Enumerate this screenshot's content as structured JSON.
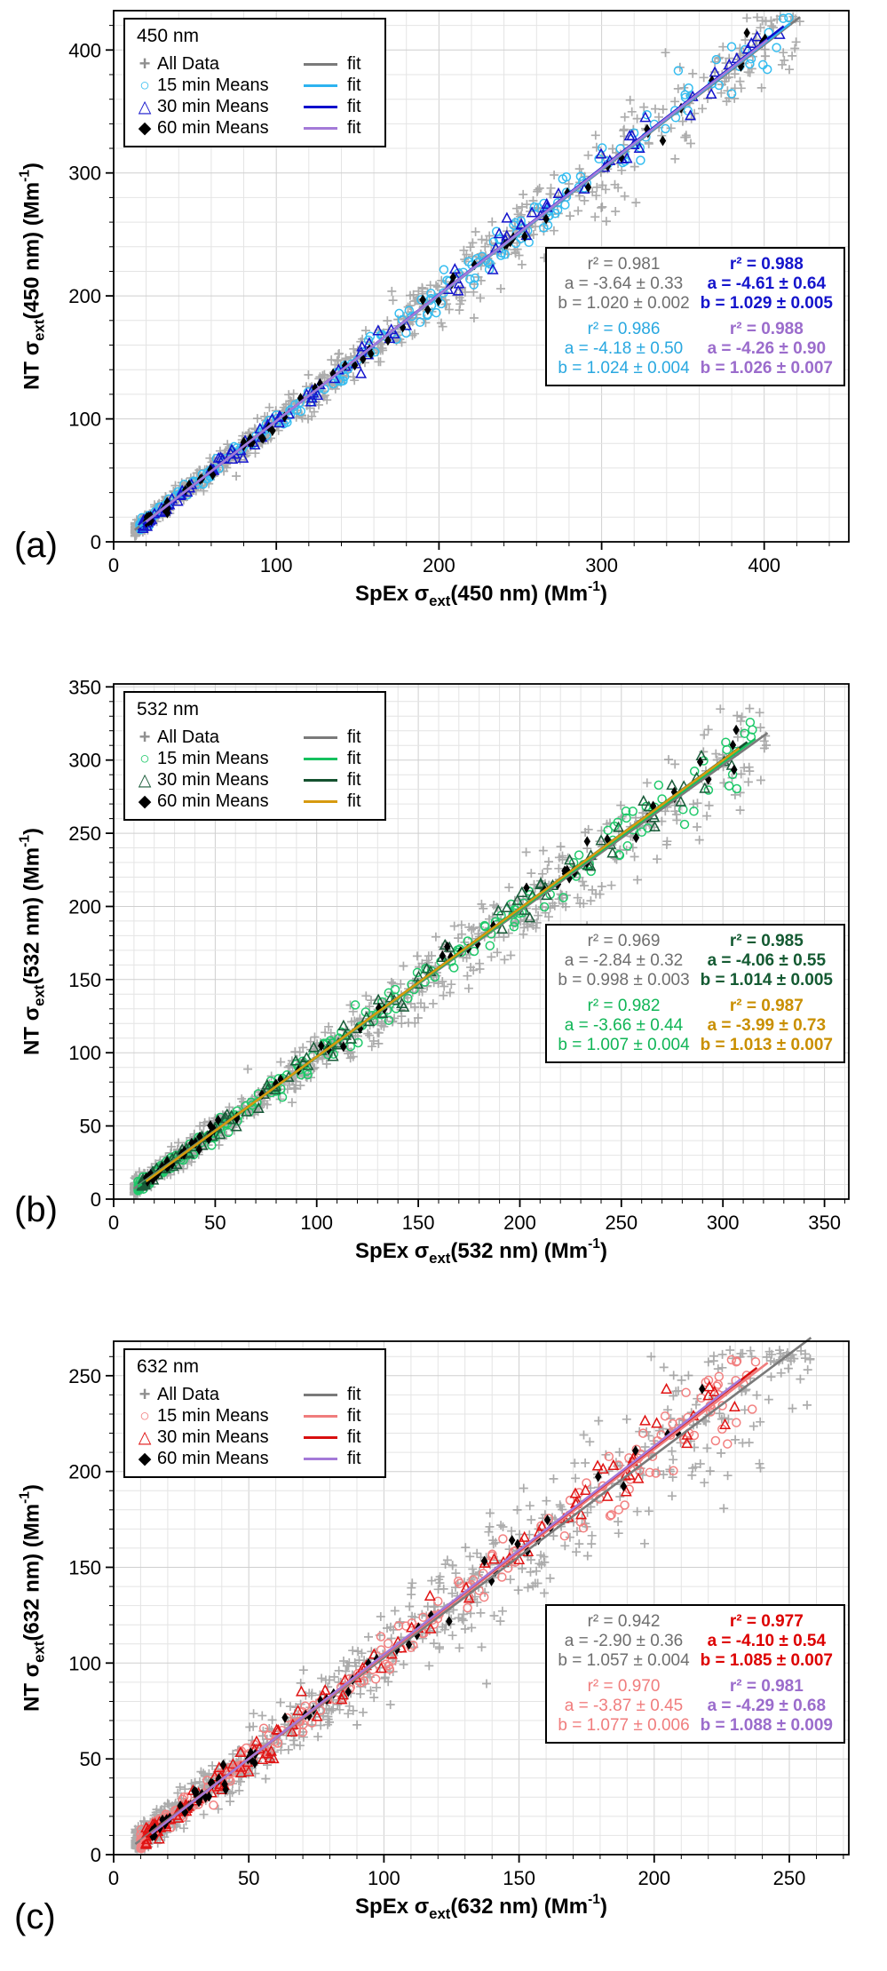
{
  "chart_data": [
    {
      "type": "scatter",
      "panel_label": "(a)",
      "seed": 101,
      "legend": {
        "title": "450 nm",
        "fit_label": "fit",
        "entries": [
          {
            "label": "All Data",
            "marker": "plus",
            "glyph": "+",
            "marker_color": "#8f8f8f",
            "line_color": "#7a7a7a"
          },
          {
            "label": "15 min Means",
            "marker": "circle",
            "glyph": "○",
            "marker_color": "#35bdf0",
            "line_color": "#2db3f0"
          },
          {
            "label": "30 min Means",
            "marker": "triangle",
            "glyph": "△",
            "marker_color": "#1414cc",
            "line_color": "#0e0ecc"
          },
          {
            "label": "60 min Means",
            "marker": "diamond",
            "glyph": "◆",
            "marker_color": "#000000",
            "line_color": "#a47ad8"
          }
        ]
      },
      "xlabel_parts": {
        "pre": "SpEx σ",
        "sub": "ext",
        "mid": "(450 nm) (Mm",
        "sup": "-1",
        "post": ")"
      },
      "ylabel_parts": {
        "pre": "NT σ",
        "sub": "ext",
        "mid": "(450 nm) (Mm",
        "sup": "-1",
        "post": ")"
      },
      "axes": {
        "xlim": [
          0,
          452
        ],
        "ylim": [
          0,
          432
        ],
        "xticks": [
          0,
          100,
          200,
          300,
          400
        ],
        "yticks": [
          0,
          100,
          200,
          300,
          400
        ],
        "minor_step": 20,
        "grid": true
      },
      "series": [
        {
          "name": "All Data",
          "marker": "plus",
          "color": "#909090",
          "n": 850,
          "x_min": 13,
          "x_max": 422,
          "noise_base": 2.5,
          "noise_slope": 0.045,
          "fit": {
            "r2": 0.981,
            "a": -3.64,
            "b": 1.02
          },
          "fit_color": "#7a7a7a"
        },
        {
          "name": "15 min Means",
          "marker": "circle",
          "color": "#35bdf0",
          "n": 250,
          "x_min": 16,
          "x_max": 416,
          "noise_base": 1.6,
          "noise_slope": 0.024,
          "fit": {
            "r2": 0.986,
            "a": -4.18,
            "b": 1.024
          },
          "fit_color": "#2db3f0"
        },
        {
          "name": "30 min Means",
          "marker": "triangle",
          "color": "#1414cc",
          "n": 125,
          "x_min": 18,
          "x_max": 412,
          "noise_base": 1.6,
          "noise_slope": 0.021,
          "fit": {
            "r2": 0.988,
            "a": -4.61,
            "b": 1.029
          },
          "fit_color": "#0e0ecc"
        },
        {
          "name": "60 min Means",
          "marker": "diamond",
          "color": "#000000",
          "n": 68,
          "x_min": 20,
          "x_max": 402,
          "noise_base": 1.3,
          "noise_slope": 0.018,
          "fit": {
            "r2": 0.988,
            "a": -4.26,
            "b": 1.026
          },
          "fit_color": "#a47ad8"
        }
      ],
      "stats": {
        "left": [
          {
            "series": "All Data",
            "color": "#6e6e6e",
            "bold": false,
            "lines": [
              "r² = 0.981",
              "a = -3.64 ± 0.33",
              "b = 1.020 ± 0.002"
            ]
          },
          {
            "series": "15 min Means",
            "color": "#29a8e0",
            "bold": false,
            "lines": [
              "r² = 0.986",
              "a = -4.18 ± 0.50",
              "b = 1.024 ± 0.004"
            ]
          }
        ],
        "right": [
          {
            "series": "30 min Means",
            "color": "#1414cc",
            "bold": true,
            "lines": [
              "r² = 0.988",
              "a = -4.61 ± 0.64",
              "b = 1.029 ± 0.005"
            ]
          },
          {
            "series": "60 min Means",
            "color": "#9b6ccc",
            "bold": true,
            "lines": [
              "r² = 0.988",
              "a = -4.26 ± 0.90",
              "b = 1.026 ± 0.007"
            ]
          }
        ]
      }
    },
    {
      "type": "scatter",
      "panel_label": "(b)",
      "seed": 202,
      "legend": {
        "title": "532 nm",
        "fit_label": "fit",
        "entries": [
          {
            "label": "All Data",
            "marker": "plus",
            "glyph": "+",
            "marker_color": "#8f8f8f",
            "line_color": "#7a7a7a"
          },
          {
            "label": "15 min Means",
            "marker": "circle",
            "glyph": "○",
            "marker_color": "#1fc96a",
            "line_color": "#15c15e"
          },
          {
            "label": "30 min Means",
            "marker": "triangle",
            "glyph": "△",
            "marker_color": "#1a5c3a",
            "line_color": "#14522f"
          },
          {
            "label": "60 min Means",
            "marker": "diamond",
            "glyph": "◆",
            "marker_color": "#000000",
            "line_color": "#d79a10"
          }
        ]
      },
      "xlabel_parts": {
        "pre": "SpEx σ",
        "sub": "ext",
        "mid": "(532 nm) (Mm",
        "sup": "-1",
        "post": ")"
      },
      "ylabel_parts": {
        "pre": "NT σ",
        "sub": "ext",
        "mid": "(532 nm) (Mm",
        "sup": "-1",
        "post": ")"
      },
      "axes": {
        "xlim": [
          0,
          362
        ],
        "ylim": [
          0,
          352
        ],
        "xticks": [
          0,
          50,
          100,
          150,
          200,
          250,
          300,
          350
        ],
        "yticks": [
          0,
          50,
          100,
          150,
          200,
          250,
          300,
          350
        ],
        "minor_step": 10,
        "grid": true
      },
      "series": [
        {
          "name": "All Data",
          "marker": "plus",
          "color": "#909090",
          "n": 850,
          "x_min": 10,
          "x_max": 322,
          "noise_base": 2.5,
          "noise_slope": 0.055,
          "fit": {
            "r2": 0.969,
            "a": -2.84,
            "b": 0.998
          },
          "fit_color": "#7a7a7a"
        },
        {
          "name": "15 min Means",
          "marker": "circle",
          "color": "#1fc96a",
          "n": 250,
          "x_min": 12,
          "x_max": 316,
          "noise_base": 1.6,
          "noise_slope": 0.028,
          "fit": {
            "r2": 0.982,
            "a": -3.66,
            "b": 1.007
          },
          "fit_color": "#15c15e"
        },
        {
          "name": "30 min Means",
          "marker": "triangle",
          "color": "#1a5c3a",
          "n": 125,
          "x_min": 14,
          "x_max": 312,
          "noise_base": 1.6,
          "noise_slope": 0.025,
          "fit": {
            "r2": 0.985,
            "a": -4.06,
            "b": 1.014
          },
          "fit_color": "#14522f"
        },
        {
          "name": "60 min Means",
          "marker": "diamond",
          "color": "#000000",
          "n": 68,
          "x_min": 16,
          "x_max": 308,
          "noise_base": 1.3,
          "noise_slope": 0.02,
          "fit": {
            "r2": 0.987,
            "a": -3.99,
            "b": 1.013
          },
          "fit_color": "#d79a10"
        }
      ],
      "stats": {
        "left": [
          {
            "series": "All Data",
            "color": "#6e6e6e",
            "bold": false,
            "lines": [
              "r² = 0.969",
              "a = -2.84 ± 0.32",
              "b = 0.998 ± 0.003"
            ]
          },
          {
            "series": "15 min Means",
            "color": "#10b556",
            "bold": false,
            "lines": [
              "r² = 0.982",
              "a = -3.66 ± 0.44",
              "b = 1.007 ± 0.004"
            ]
          }
        ],
        "right": [
          {
            "series": "30 min Means",
            "color": "#145a32",
            "bold": true,
            "lines": [
              "r² = 0.985",
              "a = -4.06 ± 0.55",
              "b = 1.014 ± 0.005"
            ]
          },
          {
            "series": "60 min Means",
            "color": "#c98f00",
            "bold": true,
            "lines": [
              "r² = 0.987",
              "a = -3.99 ± 0.73",
              "b = 1.013 ± 0.007"
            ]
          }
        ]
      }
    },
    {
      "type": "scatter",
      "panel_label": "(c)",
      "seed": 303,
      "legend": {
        "title": "632 nm",
        "fit_label": "fit",
        "entries": [
          {
            "label": "All Data",
            "marker": "plus",
            "glyph": "+",
            "marker_color": "#8f8f8f",
            "line_color": "#7a7a7a"
          },
          {
            "label": "15 min Means",
            "marker": "circle",
            "glyph": "○",
            "marker_color": "#f28080",
            "line_color": "#f07d7d"
          },
          {
            "label": "30 min Means",
            "marker": "triangle",
            "glyph": "△",
            "marker_color": "#e01414",
            "line_color": "#d80e0e"
          },
          {
            "label": "60 min Means",
            "marker": "diamond",
            "glyph": "◆",
            "marker_color": "#000000",
            "line_color": "#a47ad8"
          }
        ]
      },
      "xlabel_parts": {
        "pre": "SpEx σ",
        "sub": "ext",
        "mid": "(632 nm) (Mm",
        "sup": "-1",
        "post": ")"
      },
      "ylabel_parts": {
        "pre": "NT σ",
        "sub": "ext",
        "mid": "(632 nm) (Mm",
        "sup": "-1",
        "post": ")"
      },
      "axes": {
        "xlim": [
          0,
          272
        ],
        "ylim": [
          0,
          268
        ],
        "xticks": [
          0,
          50,
          100,
          150,
          200,
          250
        ],
        "yticks": [
          0,
          50,
          100,
          150,
          200,
          250
        ],
        "minor_step": 10,
        "grid": true
      },
      "series": [
        {
          "name": "All Data",
          "marker": "plus",
          "color": "#909090",
          "n": 900,
          "x_min": 8,
          "x_max": 258,
          "noise_base": 3.0,
          "noise_slope": 0.075,
          "fit": {
            "r2": 0.942,
            "a": -2.9,
            "b": 1.057
          },
          "fit_color": "#7a7a7a"
        },
        {
          "name": "15 min Means",
          "marker": "circle",
          "color": "#f28080",
          "n": 260,
          "x_min": 10,
          "x_max": 242,
          "noise_base": 2.0,
          "noise_slope": 0.04,
          "fit": {
            "r2": 0.97,
            "a": -3.87,
            "b": 1.077
          },
          "fit_color": "#f07d7d"
        },
        {
          "name": "30 min Means",
          "marker": "triangle",
          "color": "#e01414",
          "n": 130,
          "x_min": 12,
          "x_max": 238,
          "noise_base": 2.0,
          "noise_slope": 0.035,
          "fit": {
            "r2": 0.977,
            "a": -4.1,
            "b": 1.085
          },
          "fit_color": "#d80e0e"
        },
        {
          "name": "60 min Means",
          "marker": "diamond",
          "color": "#000000",
          "n": 70,
          "x_min": 14,
          "x_max": 232,
          "noise_base": 1.5,
          "noise_slope": 0.028,
          "fit": {
            "r2": 0.981,
            "a": -4.29,
            "b": 1.088
          },
          "fit_color": "#a47ad8"
        }
      ],
      "stats": {
        "left": [
          {
            "series": "All Data",
            "color": "#6e6e6e",
            "bold": false,
            "lines": [
              "r² = 0.942",
              "a = -2.90 ± 0.36",
              "b = 1.057 ± 0.004"
            ]
          },
          {
            "series": "15 min Means",
            "color": "#f07d7d",
            "bold": false,
            "lines": [
              "r² = 0.970",
              "a = -3.87 ± 0.45",
              "b = 1.077 ± 0.006"
            ]
          }
        ],
        "right": [
          {
            "series": "30 min Means",
            "color": "#dd0000",
            "bold": true,
            "lines": [
              "r² = 0.977",
              "a = -4.10 ± 0.54",
              "b = 1.085 ± 0.007"
            ]
          },
          {
            "series": "60 min Means",
            "color": "#9b6ccc",
            "bold": true,
            "lines": [
              "r² = 0.981",
              "a = -4.29 ± 0.68",
              "b = 1.088 ± 0.009"
            ]
          }
        ]
      }
    }
  ]
}
